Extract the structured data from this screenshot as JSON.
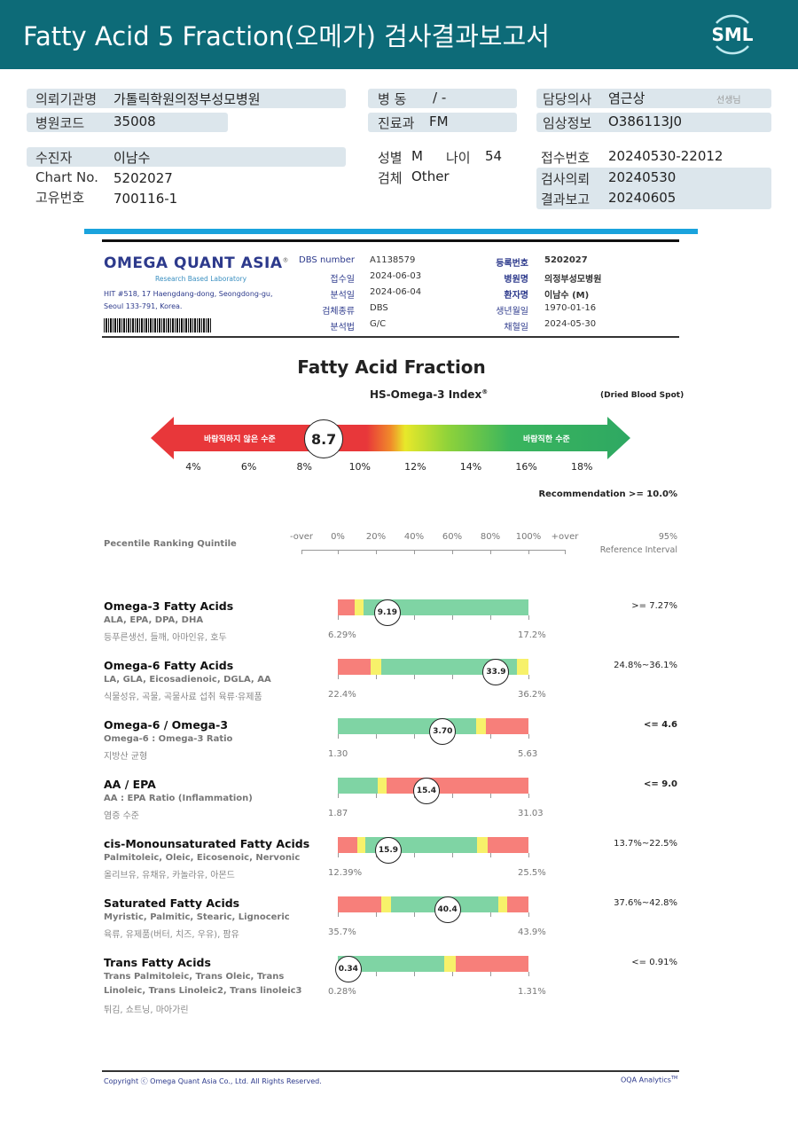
{
  "header": {
    "title": "Fatty Acid 5 Fraction(오메가) 검사결과보고서",
    "logo": "SML",
    "bg": "#0d6b78"
  },
  "info": {
    "institution_label": "의뢰기관명",
    "institution": "가톨릭학원의정부성모병원",
    "code_label": "병원코드",
    "code": "35008",
    "ward_label": "병 동",
    "ward": "/ -",
    "dept_label": "진료과",
    "dept": "FM",
    "doctor_label": "담당의사",
    "doctor": "염근상",
    "doctor_suffix": "선생님",
    "clinical_label": "임상정보",
    "clinical": "O386113J0",
    "patient_label": "수진자",
    "patient": "이남수",
    "chart_label": "Chart No.",
    "chart": "5202027",
    "uid_label": "고유번호",
    "uid": "700116-1",
    "sex_label": "성별",
    "sex": "M",
    "age_label": "나이",
    "age": "54",
    "specimen_label": "검체",
    "specimen": "Other",
    "receipt_label": "접수번호",
    "receipt": "20240530-22012",
    "request_label": "검사의뢰",
    "request": "20240530",
    "report_label": "결과보고",
    "report": "20240605"
  },
  "lab": {
    "name": "OMEGA QUANT ASIA",
    "reg": "®",
    "tagline": "Research Based Laboratory",
    "address1": "HIT #518, 17 Haengdang-dong, Seongdong-gu,",
    "address2": "Seoul 133-791, Korea.",
    "fields_left": [
      {
        "label": "DBS number",
        "value": "A1138579"
      },
      {
        "label": "접수일",
        "value": "2024-06-03"
      },
      {
        "label": "분석일",
        "value": "2024-06-04"
      },
      {
        "label": "검체종류",
        "value": "DBS"
      },
      {
        "label": "분석법",
        "value": "G/C"
      }
    ],
    "fields_right": [
      {
        "label": "등록번호",
        "value": "5202027"
      },
      {
        "label": "병원명",
        "value": "의정부성모병원"
      },
      {
        "label": "환자명",
        "value": "이남수 (M)"
      },
      {
        "label": "생년월일",
        "value": "1970-01-16"
      },
      {
        "label": "채혈일",
        "value": "2024-05-30"
      }
    ]
  },
  "index": {
    "title": "Fatty Acid Fraction",
    "subtitle": "HS-Omega-3 Index",
    "reg": "®",
    "sample": "(Dried Blood Spot)",
    "bad_label": "바람직하지 않은 수준",
    "good_label": "바람직한 수준",
    "value": "8.7",
    "value_num": 8.7,
    "ticks": [
      "4%",
      "6%",
      "8%",
      "10%",
      "12%",
      "14%",
      "16%",
      "18%"
    ],
    "recommendation": "Recommendation  >= 10.0%"
  },
  "scale": {
    "title": "Pecentile Ranking Quintile",
    "labels": [
      "-over",
      "0%",
      "20%",
      "40%",
      "60%",
      "80%",
      "100%",
      "+over"
    ],
    "ref1": "95%",
    "ref2": "Reference Interval"
  },
  "colors": {
    "red": "#f77f7a",
    "yellow": "#f7f16a",
    "green": "#7fd4a4"
  },
  "rows": [
    {
      "title": "Omega-3 Fatty Acids",
      "sub1": "ALA, EPA, DPA, DHA",
      "sub2": "등푸른생선, 들깨, 아마인유, 호두",
      "min": "6.29%",
      "max": "17.2%",
      "value": "9.19",
      "position_pct": 26,
      "ref": ">= 7.27%",
      "ref_bold": false,
      "zones": [
        [
          "red",
          9
        ],
        [
          "yellow",
          4.5
        ],
        [
          "green",
          86.5
        ]
      ]
    },
    {
      "title": "Omega-6 Fatty Acids",
      "sub1": "LA, GLA, Eicosadienoic, DGLA, AA",
      "sub2": "식물성유, 곡물, 곡물사료 섭취 육류·유제품",
      "min": "22.4%",
      "max": "36.2%",
      "value": "33.9",
      "position_pct": 83,
      "ref": "24.8%~36.1%",
      "ref_bold": false,
      "zones": [
        [
          "red",
          17
        ],
        [
          "yellow",
          6
        ],
        [
          "green",
          71
        ],
        [
          "yellow",
          6
        ]
      ]
    },
    {
      "title": "Omega-6 / Omega-3",
      "sub1": "Omega-6 : Omega-3 Ratio",
      "sub2": "지방산 균형",
      "min": "1.30",
      "max": "5.63",
      "value": "3.70",
      "position_pct": 55,
      "ref": "<= 4.6",
      "ref_bold": true,
      "zones": [
        [
          "green",
          72.5
        ],
        [
          "yellow",
          5
        ],
        [
          "red",
          22.5
        ]
      ]
    },
    {
      "title": "AA / EPA",
      "sub1": "AA : EPA Ratio (Inflammation)",
      "sub2": "염증 수준",
      "min": "1.87",
      "max": "31.03",
      "value": "15.4",
      "position_pct": 46.5,
      "ref": "<= 9.0",
      "ref_bold": true,
      "zones": [
        [
          "green",
          21
        ],
        [
          "yellow",
          4.5
        ],
        [
          "red",
          74.5
        ]
      ]
    },
    {
      "title": "cis-Monounsaturated Fatty Acids",
      "sub1": "Palmitoleic, Oleic, Eicosenoic, Nervonic",
      "sub2": "올리브유, 유채유, 카놀라유, 아몬드",
      "min": "12.39%",
      "max": "25.5%",
      "value": "15.9",
      "position_pct": 26.5,
      "ref": "13.7%~22.5%",
      "ref_bold": false,
      "zones": [
        [
          "red",
          10
        ],
        [
          "yellow",
          4.5
        ],
        [
          "green",
          58.5
        ],
        [
          "yellow",
          5.5
        ],
        [
          "red",
          21.5
        ]
      ]
    },
    {
      "title": "Saturated Fatty Acids",
      "sub1": "Myristic, Palmitic, Stearic, Lignoceric",
      "sub2": "육류, 유제품(버터, 치즈, 우유), 팜유",
      "min": "35.7%",
      "max": "43.9%",
      "value": "40.4",
      "position_pct": 57.5,
      "ref": "37.6%~42.8%",
      "ref_bold": false,
      "zones": [
        [
          "red",
          23
        ],
        [
          "yellow",
          5
        ],
        [
          "green",
          56
        ],
        [
          "yellow",
          5
        ],
        [
          "red",
          11
        ]
      ]
    },
    {
      "title": "Trans Fatty Acids",
      "sub1": "Trans Palmitoleic, Trans Oleic, Trans",
      "sub1b": "Linoleic, Trans Linoleic2, Trans linoleic3",
      "sub2": "튀김, 쇼트닝, 마아가린",
      "min": "0.28%",
      "max": "1.31%",
      "value": "0.34",
      "position_pct": 5.5,
      "ref": "<= 0.91%",
      "ref_bold": false,
      "zones": [
        [
          "green",
          56
        ],
        [
          "yellow",
          6
        ],
        [
          "red",
          38
        ]
      ]
    }
  ],
  "footer": {
    "copyright": "Copyright ⓒ Omega Quant Asia Co., Ltd.  All Rights Reserved.",
    "brand": "OQA Analytics",
    "tm": "TM"
  }
}
